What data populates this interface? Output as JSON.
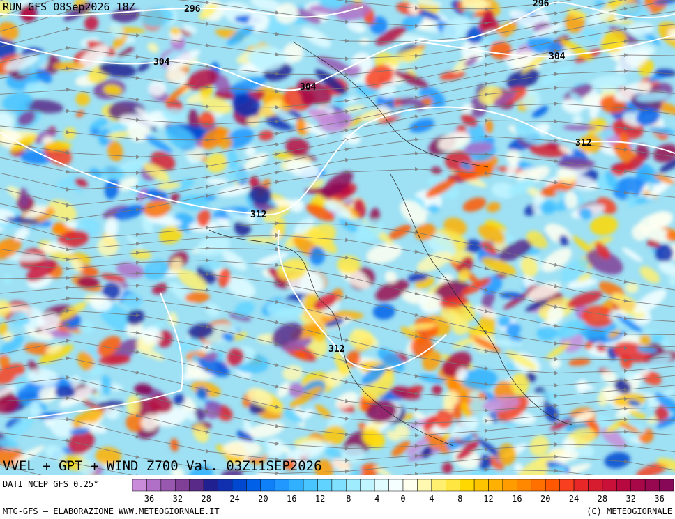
{
  "header": {
    "run": "RUN GFS 08Sep2026 18Z"
  },
  "contour_labels": [
    "296",
    "296",
    "304",
    "304",
    "304",
    "312",
    "312",
    "312"
  ],
  "title": "VVEL + GPT + WIND Z700 Val. 03Z11SEP2026",
  "source": "DATI NCEP GFS 0.25°",
  "footer": {
    "left": "MTG-GFS — ELABORAZIONE WWW.METEOGIORNALE.IT",
    "right": "(C) METEOGIORNALE"
  },
  "colorbar": {
    "ticks": [
      -36,
      -32,
      -28,
      -24,
      -20,
      -16,
      -12,
      -8,
      -4,
      0,
      4,
      8,
      12,
      16,
      20,
      24,
      28,
      32,
      36
    ],
    "colors": [
      "#c88cd8",
      "#b070c8",
      "#9858b0",
      "#804098",
      "#5a2a88",
      "#202090",
      "#1030b0",
      "#0048d0",
      "#0060e8",
      "#1080f8",
      "#2098ff",
      "#30b0ff",
      "#48c4ff",
      "#60d4ff",
      "#80e0ff",
      "#a0ecff",
      "#c0f4ff",
      "#e0fcff",
      "#f6ffff",
      "#fffff0",
      "#fff8b0",
      "#fff070",
      "#ffe640",
      "#ffd800",
      "#ffc400",
      "#ffb000",
      "#ff9c00",
      "#ff8800",
      "#ff7000",
      "#ff5800",
      "#f84020",
      "#e82828",
      "#d81c30",
      "#c81038",
      "#b80840",
      "#a80848",
      "#980850",
      "#880858"
    ]
  }
}
